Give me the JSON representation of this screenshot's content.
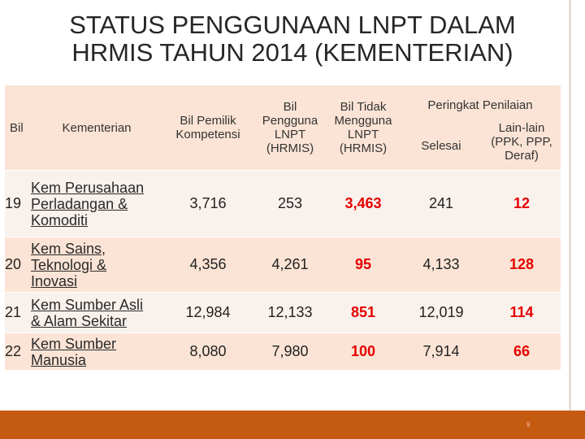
{
  "title_line1": "STATUS PENGGUNAAN LNPT DALAM",
  "title_line2": "HRMIS TAHUN 2014 (KEMENTERIAN)",
  "headers": {
    "bil": "Bil",
    "kementerian": "Kementerian",
    "pemilik_1": "Bil Pemilik",
    "pemilik_2": "Kompetensi",
    "pengguna_1": "Bil",
    "pengguna_2": "Pengguna",
    "pengguna_3": "LNPT",
    "pengguna_4": "(HRMIS)",
    "tidak_1": "Bil Tidak",
    "tidak_2": "Mengguna",
    "tidak_3": "LNPT",
    "tidak_4": "(HRMIS)",
    "peringkat": "Peringkat Penilaian",
    "selesai": "Selesai",
    "lain_1": "Lain-lain",
    "lain_2": "(PPK, PPP,",
    "lain_3": "Deraf)"
  },
  "rows": [
    {
      "bil": "19",
      "kem": [
        "Kem Perusahaan",
        "Perladangan &",
        "Komoditi"
      ],
      "pemilik": "3,716",
      "pengguna": "253",
      "tidak": "3,463",
      "selesai": "241",
      "lain": "12"
    },
    {
      "bil": "20",
      "kem": [
        "Kem Sains,",
        "Teknologi &",
        "Inovasi"
      ],
      "pemilik": "4,356",
      "pengguna": "4,261",
      "tidak": "95",
      "selesai": "4,133",
      "lain": "128"
    },
    {
      "bil": "21",
      "kem": [
        "Kem Sumber Asli",
        "& Alam Sekitar"
      ],
      "pemilik": "12,984",
      "pengguna": "12,133",
      "tidak": "851",
      "selesai": "12,019",
      "lain": "114"
    },
    {
      "bil": "22",
      "kem": [
        "Kem Sumber",
        "Manusia"
      ],
      "pemilik": "8,080",
      "pengguna": "7,980",
      "tidak": "100",
      "selesai": "7,914",
      "lain": "66"
    }
  ],
  "page_number": "9"
}
